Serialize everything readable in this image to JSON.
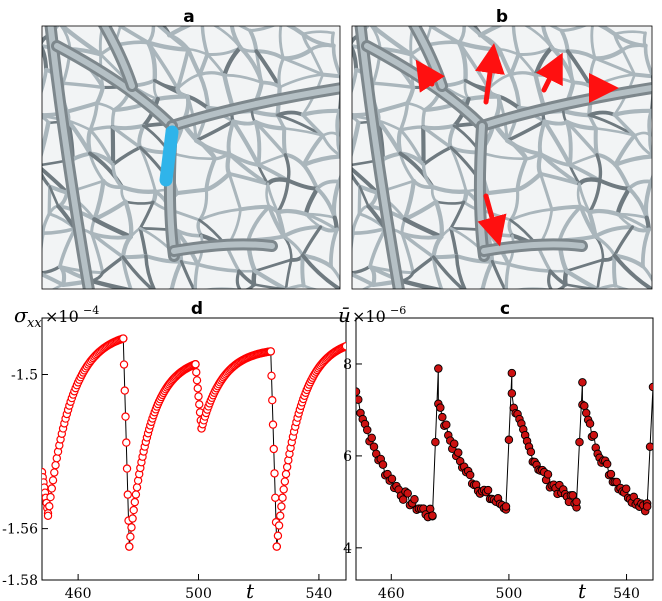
{
  "panels": {
    "a": {
      "label": "a"
    },
    "b": {
      "label": "b"
    },
    "d": {
      "label": "d"
    },
    "c": {
      "label": "c"
    }
  },
  "chart_data": [
    {
      "panel": "d",
      "type": "line",
      "ylabel_symbol": "σ",
      "ylabel_sub": "xx",
      "ylabel_multiplier": "×10",
      "ylabel_exponent": "−4",
      "xlabel": "t",
      "xlim": [
        448,
        549
      ],
      "ylim": [
        -1.58,
        -1.478
      ],
      "xticks": [
        "460",
        "500",
        "540"
      ],
      "xtick_values": [
        460,
        500,
        540
      ],
      "yticks": [
        "-1.5",
        "-1.56",
        "-1.58"
      ],
      "ytick_values": [
        -1.5,
        -1.56,
        -1.58
      ],
      "marker": "open-circle",
      "color": "#ff0000",
      "segments": [
        {
          "t0": 448,
          "t1": 450,
          "y0": -1.538,
          "y1": -1.554,
          "shape": "sawtooth-drop"
        },
        {
          "t0": 450,
          "t1": 475,
          "y0": -1.555,
          "y1": -1.486,
          "shape": "rise"
        },
        {
          "t0": 475,
          "t1": 477,
          "y0": -1.486,
          "y1": -1.567,
          "shape": "drop"
        },
        {
          "t0": 477,
          "t1": 499,
          "y0": -1.567,
          "y1": -1.496,
          "shape": "rise"
        },
        {
          "t0": 499,
          "t1": 501,
          "y0": -1.496,
          "y1": -1.521,
          "shape": "drop"
        },
        {
          "t0": 501,
          "t1": 524,
          "y0": -1.521,
          "y1": -1.491,
          "shape": "rise"
        },
        {
          "t0": 524,
          "t1": 526,
          "y0": -1.491,
          "y1": -1.567,
          "shape": "drop"
        },
        {
          "t0": 526,
          "t1": 549,
          "y0": -1.567,
          "y1": -1.489,
          "shape": "rise"
        }
      ]
    },
    {
      "panel": "c",
      "type": "line",
      "ylabel_symbol": "ū",
      "ylabel_multiplier": "×10",
      "ylabel_exponent": "−6",
      "xlabel": "t",
      "xlim": [
        448,
        549
      ],
      "ylim": [
        3.3,
        9.0
      ],
      "xticks": [
        "460",
        "500",
        "540"
      ],
      "xtick_values": [
        460,
        500,
        540
      ],
      "yticks": [
        "8",
        "6",
        "4"
      ],
      "ytick_values": [
        8,
        6,
        4
      ],
      "marker": "filled-circle",
      "color": "#cc1111",
      "segments": [
        {
          "t0": 448,
          "t1": 474,
          "y0": 7.4,
          "y1": 4.7
        },
        {
          "t0": 474,
          "t1": 476,
          "y0": 4.7,
          "y1": 7.9
        },
        {
          "t0": 476,
          "t1": 499,
          "y0": 7.2,
          "y1": 4.9
        },
        {
          "t0": 499,
          "t1": 501,
          "y0": 4.9,
          "y1": 7.8
        },
        {
          "t0": 501,
          "t1": 523,
          "y0": 7.3,
          "y1": 5.0
        },
        {
          "t0": 523,
          "t1": 525,
          "y0": 5.0,
          "y1": 7.6
        },
        {
          "t0": 525,
          "t1": 547,
          "y0": 7.2,
          "y1": 4.9
        },
        {
          "t0": 547,
          "t1": 549,
          "y0": 4.9,
          "y1": 7.5
        }
      ]
    }
  ]
}
